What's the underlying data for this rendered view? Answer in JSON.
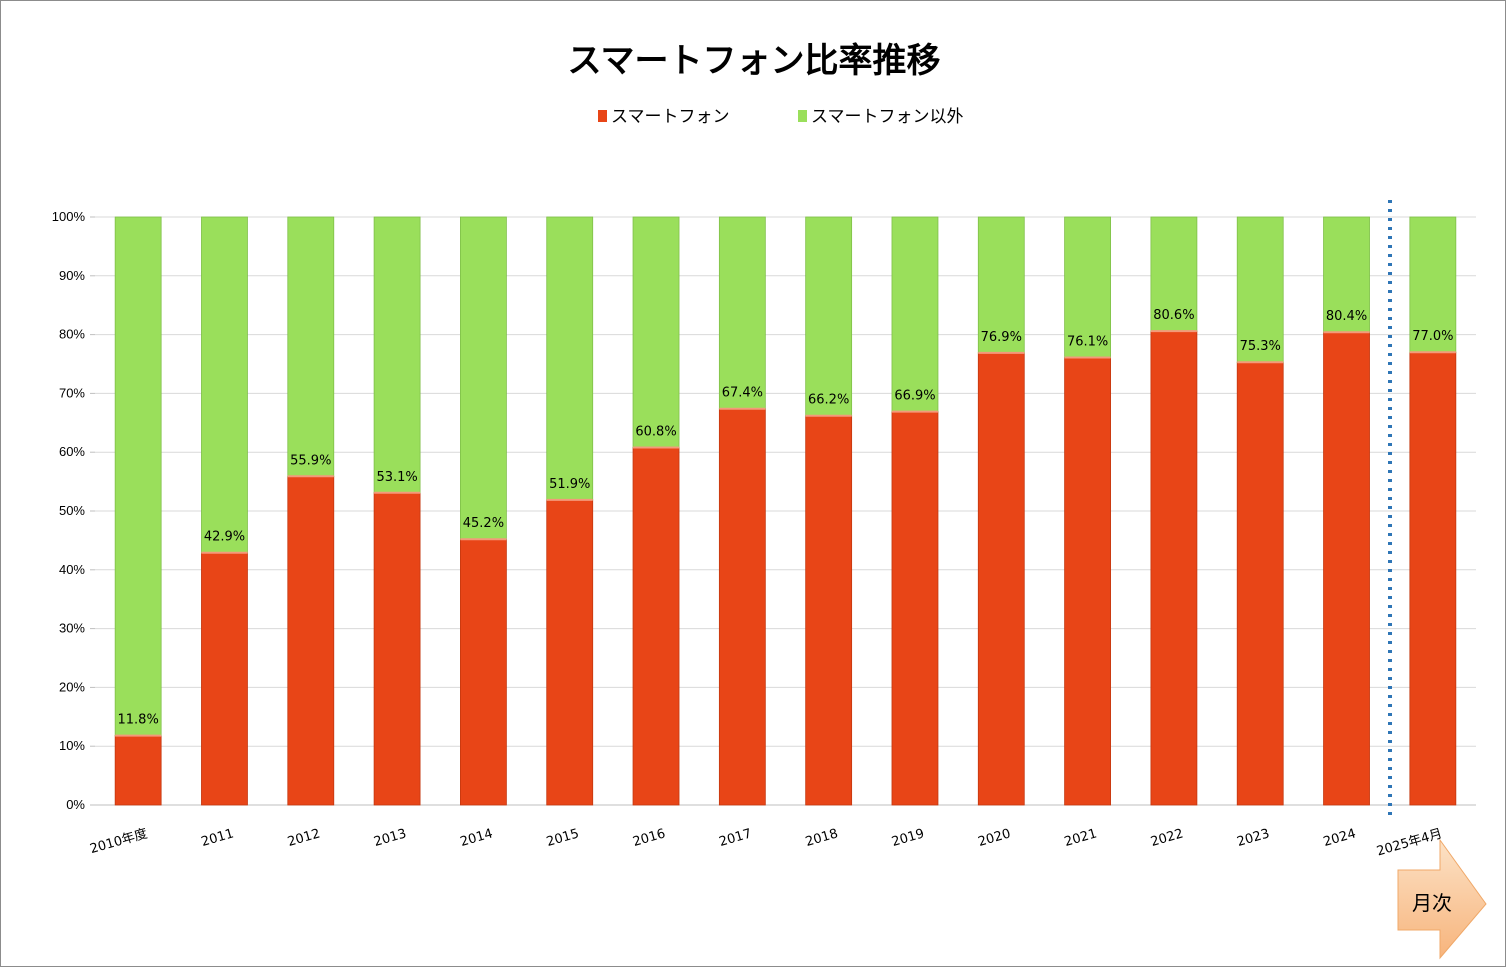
{
  "chart_data": {
    "type": "bar",
    "stacked": true,
    "title": "スマートフォン比率推移",
    "categories": [
      "2010年度",
      "2011",
      "2012",
      "2013",
      "2014",
      "2015",
      "2016",
      "2017",
      "2018",
      "2019",
      "2020",
      "2021",
      "2022",
      "2023",
      "2024",
      "2025年4月"
    ],
    "series": [
      {
        "name": "スマートフォン",
        "color": "#E84517",
        "values": [
          11.8,
          42.9,
          55.9,
          53.1,
          45.2,
          51.9,
          60.8,
          67.4,
          66.2,
          66.9,
          76.9,
          76.1,
          80.6,
          75.3,
          80.4,
          77.0
        ]
      },
      {
        "name": "スマートフォン以外",
        "color": "#9ADF5B",
        "values": [
          88.2,
          57.1,
          44.1,
          46.9,
          54.8,
          48.1,
          39.2,
          32.6,
          33.8,
          33.1,
          23.1,
          23.9,
          19.4,
          24.7,
          19.6,
          23.0
        ]
      }
    ],
    "data_labels": [
      "11.8%",
      "42.9%",
      "55.9%",
      "53.1%",
      "45.2%",
      "51.9%",
      "60.8%",
      "67.4%",
      "66.2%",
      "66.9%",
      "76.9%",
      "76.1%",
      "80.6%",
      "75.3%",
      "80.4%",
      "77.0%"
    ],
    "yticks": [
      "0%",
      "10%",
      "20%",
      "30%",
      "40%",
      "50%",
      "60%",
      "70%",
      "80%",
      "90%",
      "100%"
    ],
    "ylim": [
      0,
      100
    ],
    "grid": true,
    "legend_position": "top-center",
    "annotation": {
      "divider": "dotted-vertical-before-last",
      "arrow_label": "月次"
    }
  }
}
